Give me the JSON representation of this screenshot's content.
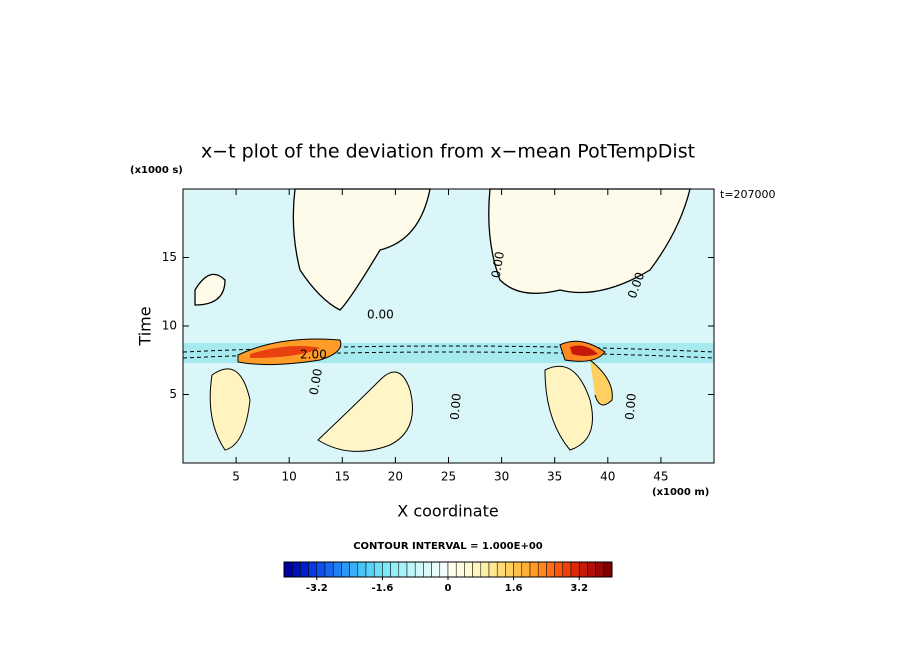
{
  "chart_data": {
    "type": "contour",
    "title": "x−t plot of the deviation from x−mean PotTempDist",
    "y_unit": "(x1000 s)",
    "x_unit": "(x1000 m)",
    "annotation": "t=207000",
    "ylabel": "Time",
    "xlabel": "X coordinate",
    "contour_interval": "CONTOUR INTERVAL = 1.000E+00",
    "xlim": [
      0,
      50
    ],
    "ylim": [
      0,
      20
    ],
    "xticks": [
      5,
      10,
      15,
      20,
      25,
      30,
      35,
      40,
      45
    ],
    "yticks": [
      5,
      10,
      15
    ],
    "contour_labels": [
      "0.00",
      "2.00",
      "0.00",
      "0.00",
      "0.00",
      "0.00",
      "0.00"
    ],
    "colorbar": {
      "lim": [
        -4,
        4
      ],
      "ticks": [
        -3.2,
        -1.6,
        0,
        1.6,
        3.2
      ],
      "colors": [
        "#0000a0",
        "#0010b8",
        "#0020d0",
        "#0838e0",
        "#1050ea",
        "#1868f0",
        "#2080f4",
        "#2c98f6",
        "#38b0f8",
        "#48c4f8",
        "#58d4f8",
        "#6ce0f8",
        "#80e8f8",
        "#94eef8",
        "#a8f2fa",
        "#bcf6fa",
        "#d0f8fa",
        "#ddfafb",
        "#e8fcfc",
        "#f4fefe",
        "#fffff0",
        "#fffce0",
        "#fffad0",
        "#fff6c0",
        "#fff0a8",
        "#ffe890",
        "#ffdc78",
        "#ffd060",
        "#ffc048",
        "#ffb038",
        "#ff9c28",
        "#ff8820",
        "#ff7018",
        "#f85810",
        "#f04010",
        "#e02808",
        "#c81808",
        "#b01008",
        "#980808",
        "#800000"
      ]
    }
  }
}
